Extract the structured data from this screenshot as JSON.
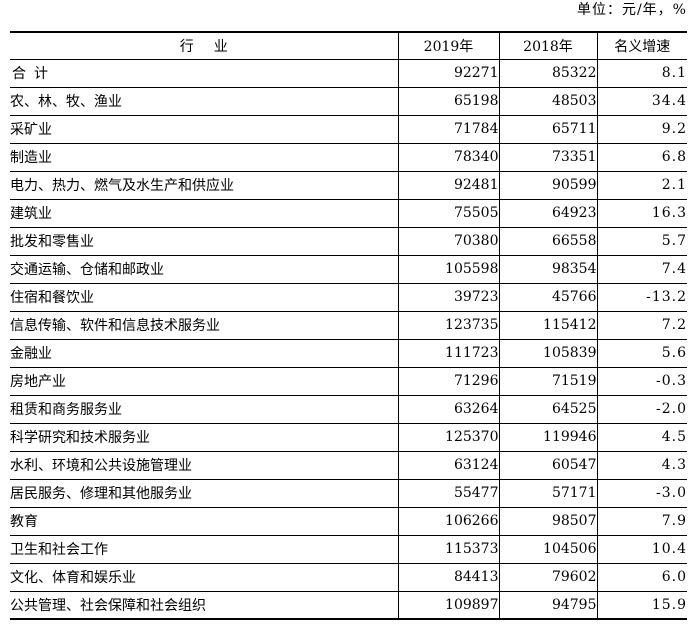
{
  "unit_note": "单位：元/年，%",
  "table": {
    "headers": {
      "industry": "行业",
      "y2019": "2019年",
      "y2018": "2018年",
      "growth": "名义增速"
    },
    "rows": [
      {
        "name": "合计",
        "y2019": "92271",
        "y2018": "85322",
        "growth": "8.1",
        "total": true
      },
      {
        "name": "农、林、牧、渔业",
        "y2019": "65198",
        "y2018": "48503",
        "growth": "34.4"
      },
      {
        "name": "采矿业",
        "y2019": "71784",
        "y2018": "65711",
        "growth": "9.2"
      },
      {
        "name": "制造业",
        "y2019": "78340",
        "y2018": "73351",
        "growth": "6.8"
      },
      {
        "name": "电力、热力、燃气及水生产和供应业",
        "y2019": "92481",
        "y2018": "90599",
        "growth": "2.1"
      },
      {
        "name": "建筑业",
        "y2019": "75505",
        "y2018": "64923",
        "growth": "16.3"
      },
      {
        "name": "批发和零售业",
        "y2019": "70380",
        "y2018": "66558",
        "growth": "5.7"
      },
      {
        "name": "交通运输、仓储和邮政业",
        "y2019": "105598",
        "y2018": "98354",
        "growth": "7.4"
      },
      {
        "name": "住宿和餐饮业",
        "y2019": "39723",
        "y2018": "45766",
        "growth": "-13.2"
      },
      {
        "name": "信息传输、软件和信息技术服务业",
        "y2019": "123735",
        "y2018": "115412",
        "growth": "7.2"
      },
      {
        "name": "金融业",
        "y2019": "111723",
        "y2018": "105839",
        "growth": "5.6"
      },
      {
        "name": "房地产业",
        "y2019": "71296",
        "y2018": "71519",
        "growth": "-0.3"
      },
      {
        "name": "租赁和商务服务业",
        "y2019": "63264",
        "y2018": "64525",
        "growth": "-2.0"
      },
      {
        "name": "科学研究和技术服务业",
        "y2019": "125370",
        "y2018": "119946",
        "growth": "4.5"
      },
      {
        "name": "水利、环境和公共设施管理业",
        "y2019": "63124",
        "y2018": "60547",
        "growth": "4.3"
      },
      {
        "name": "居民服务、修理和其他服务业",
        "y2019": "55477",
        "y2018": "57171",
        "growth": "-3.0"
      },
      {
        "name": "教育",
        "y2019": "106266",
        "y2018": "98507",
        "growth": "7.9"
      },
      {
        "name": "卫生和社会工作",
        "y2019": "115373",
        "y2018": "104506",
        "growth": "10.4"
      },
      {
        "name": "文化、体育和娱乐业",
        "y2019": "84413",
        "y2018": "79602",
        "growth": "6.0"
      },
      {
        "name": "公共管理、社会保障和社会组织",
        "y2019": "109897",
        "y2018": "94795",
        "growth": "15.9"
      }
    ]
  }
}
